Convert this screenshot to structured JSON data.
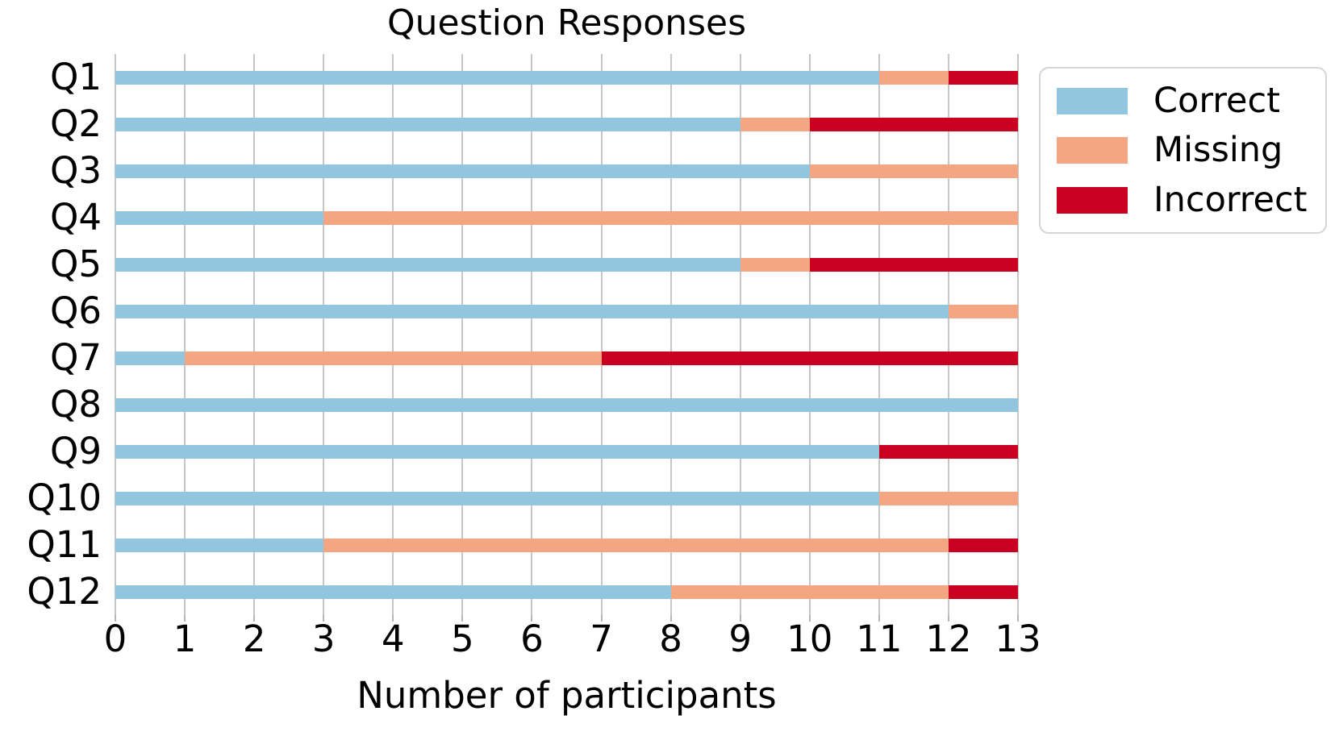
{
  "title": "Question Responses",
  "xlabel": "Number of participants",
  "legend": {
    "items": [
      {
        "label": "Correct",
        "color": "#92c5de"
      },
      {
        "label": "Missing",
        "color": "#f4a582"
      },
      {
        "label": "Incorrect",
        "color": "#ca0020"
      }
    ]
  },
  "chart_data": {
    "type": "bar",
    "orientation": "horizontal",
    "stacked": true,
    "title": "Question Responses",
    "xlabel": "Number of participants",
    "ylabel": "",
    "categories": [
      "Q1",
      "Q2",
      "Q3",
      "Q4",
      "Q5",
      "Q6",
      "Q7",
      "Q8",
      "Q9",
      "Q10",
      "Q11",
      "Q12"
    ],
    "series": [
      {
        "name": "Correct",
        "color": "#92c5de",
        "values": [
          11,
          9,
          10,
          3,
          9,
          12,
          1,
          13,
          11,
          11,
          3,
          8
        ]
      },
      {
        "name": "Missing",
        "color": "#f4a582",
        "values": [
          1,
          1,
          3,
          10,
          1,
          1,
          6,
          0,
          0,
          2,
          9,
          4
        ]
      },
      {
        "name": "Incorrect",
        "color": "#ca0020",
        "values": [
          1,
          3,
          0,
          0,
          3,
          0,
          6,
          0,
          2,
          0,
          1,
          1
        ]
      }
    ],
    "xlim": [
      0,
      13
    ],
    "xticks": [
      0,
      1,
      2,
      3,
      4,
      5,
      6,
      7,
      8,
      9,
      10,
      11,
      12,
      13
    ],
    "grid": "vertical",
    "gridline_color": "#c6c6c6",
    "legend_position": "upper-right-outside"
  }
}
